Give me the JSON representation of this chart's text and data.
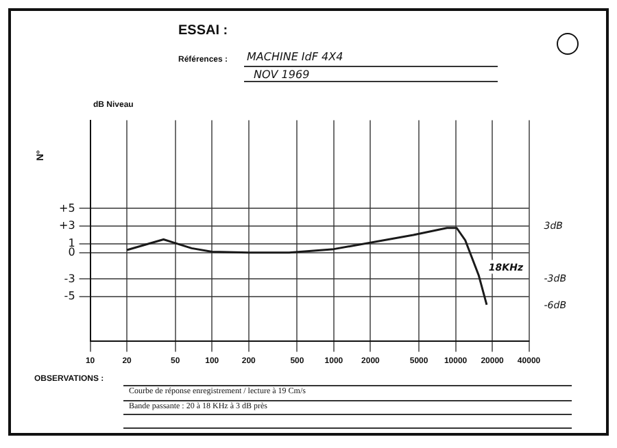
{
  "chart_data": {
    "type": "line",
    "title": "ESSAI :",
    "ylabel": "dB Niveau",
    "annotations": [
      "Références :",
      "MACHINE IdF 4X4",
      "NOV 1969",
      "N°",
      "OBSERVATIONS :",
      "Courbe de réponse enregistrement / lecture à 19 Cm/s",
      "Bande passante : 20 à 18 KHz à 3 dB près",
      {
        "text": "18KHz",
        "x": 16000,
        "y": -3
      }
    ],
    "x": [
      20,
      40,
      52,
      68,
      100,
      200,
      430,
      1000,
      4500,
      8500,
      10200,
      12000,
      15500,
      18000
    ],
    "series": [
      {
        "color": "#1a1a1a",
        "values": [
          0.3,
          1.5,
          1.0,
          0.5,
          0.1,
          0,
          0,
          0.4,
          2.0,
          2.8,
          2.8,
          1.4,
          -2.6,
          -5.9
        ]
      }
    ],
    "log": "x",
    "xlim": [
      10,
      40000
    ],
    "xticks": [
      10,
      20,
      50,
      100,
      200,
      500,
      1000,
      2000,
      5000,
      10000,
      20000,
      40000
    ],
    "ylim": [
      -10,
      15
    ],
    "yticks": [
      {
        "value": 5,
        "label": "+5"
      },
      {
        "value": 3,
        "label": "+3"
      },
      1,
      0,
      -3,
      -5
    ],
    "y2lim": [
      -10,
      15
    ],
    "y2ticks": [
      {
        "value": 3,
        "label": "3dB"
      },
      {
        "value": -3,
        "label": "-3dB"
      },
      {
        "value": -6,
        "label": "-6dB"
      }
    ],
    "grid": true,
    "legend": false,
    "marker": "none",
    "line_style": "solid"
  }
}
